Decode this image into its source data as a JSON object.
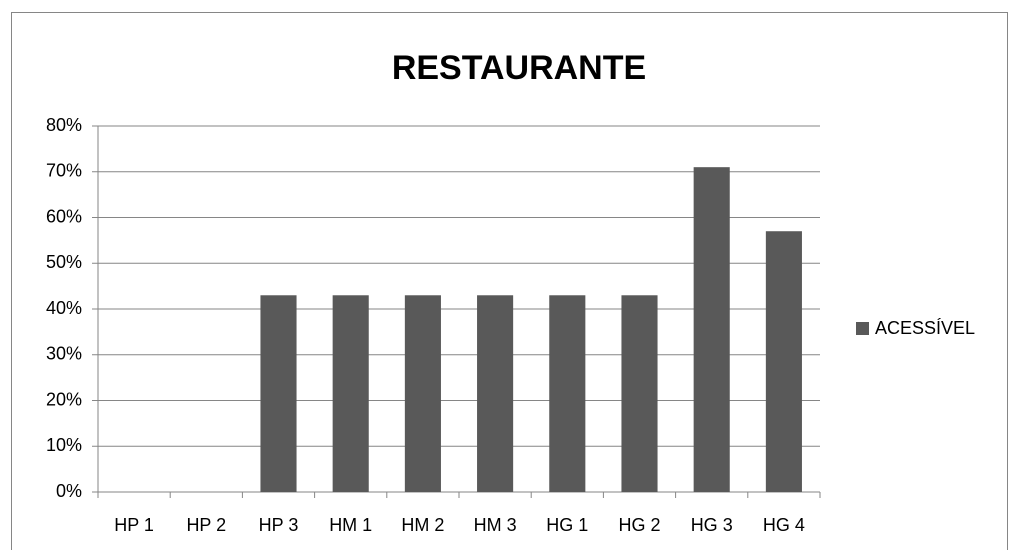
{
  "chart_data": {
    "type": "bar",
    "title": "RESTAURANTE",
    "categories": [
      "HP 1",
      "HP 2",
      "HP 3",
      "HM 1",
      "HM 2",
      "HM 3",
      "HG 1",
      "HG 2",
      "HG 3",
      "HG 4"
    ],
    "series": [
      {
        "name": "ACESSÍVEL",
        "color": "#595959",
        "values": [
          0,
          0,
          43,
          43,
          43,
          43,
          43,
          43,
          71,
          57
        ]
      }
    ],
    "ylim": [
      0,
      80
    ],
    "yticks": [
      {
        "value": 0,
        "label": "0%"
      },
      {
        "value": 10,
        "label": "10%"
      },
      {
        "value": 20,
        "label": "20%"
      },
      {
        "value": 30,
        "label": "30%"
      },
      {
        "value": 40,
        "label": "40%"
      },
      {
        "value": 50,
        "label": "50%"
      },
      {
        "value": 60,
        "label": "60%"
      },
      {
        "value": 70,
        "label": "70%"
      },
      {
        "value": 80,
        "label": "80%"
      }
    ],
    "grid": true,
    "legend": "right"
  }
}
